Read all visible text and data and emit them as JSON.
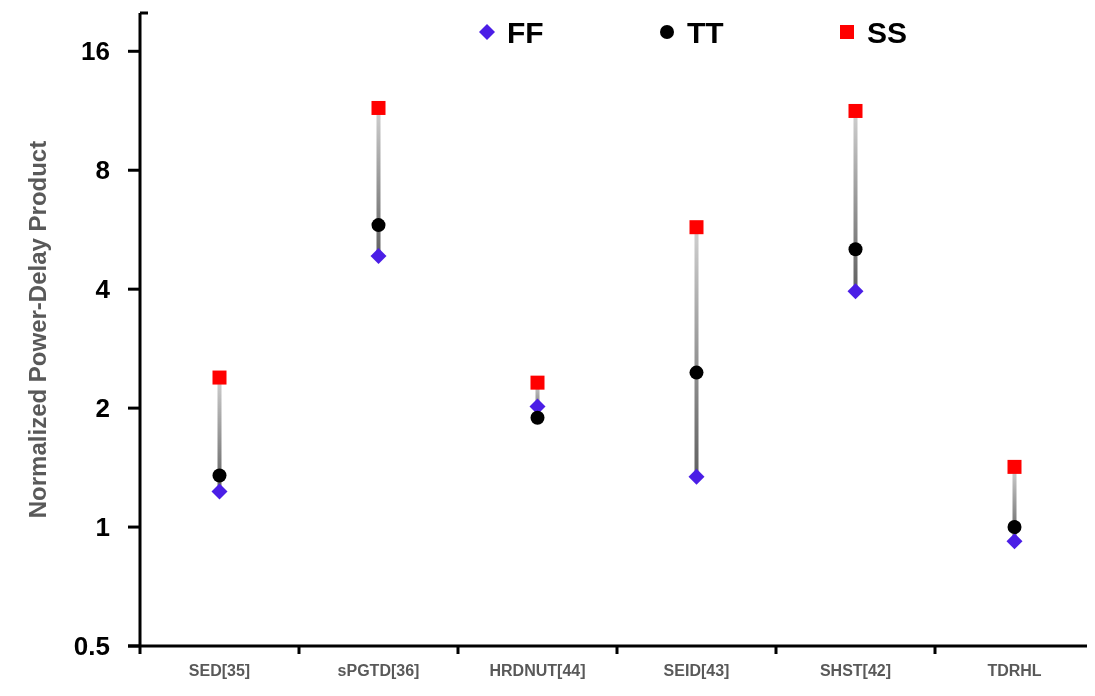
{
  "chart_data": {
    "type": "scatter",
    "ylabel": "Normalized Power-Delay Product",
    "categories": [
      "SED[35]",
      "sPGTD[36]",
      "HRDNUT[44]",
      "SEID[43]",
      "SHST[42]",
      "TDRHL"
    ],
    "series": [
      {
        "name": "FF",
        "color": "#4b1ee6",
        "marker": "diamond",
        "values": [
          1.23,
          4.85,
          2.02,
          1.34,
          3.95,
          0.92
        ]
      },
      {
        "name": "TT",
        "color": "#000000",
        "marker": "circle",
        "values": [
          1.35,
          5.81,
          1.89,
          2.46,
          5.05,
          1.0
        ]
      },
      {
        "name": "SS",
        "color": "#ff0000",
        "marker": "square",
        "values": [
          2.39,
          11.5,
          2.32,
          5.74,
          11.3,
          1.42
        ]
      }
    ],
    "log": true,
    "ylim": [
      0.5,
      20
    ],
    "yticks": [
      0.5,
      1,
      2,
      4,
      8,
      16
    ],
    "legend": "top"
  }
}
